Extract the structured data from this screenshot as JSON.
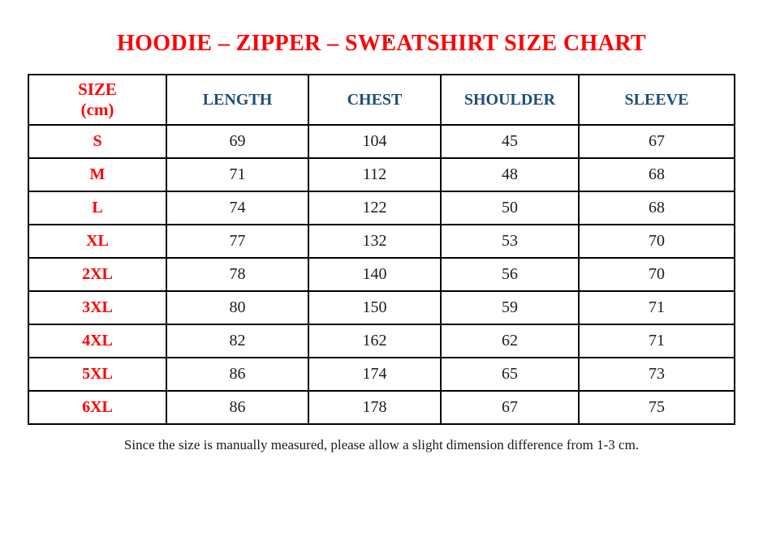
{
  "page": {
    "top_dot": ".",
    "title": "HOODIE – ZIPPER – SWEATSHIRT SIZE CHART",
    "footnote": "Since the size is manually measured, please allow a slight dimension difference from 1-3 cm."
  },
  "colors": {
    "title_red": "#ff0000",
    "size_label_red": "#ff0000",
    "header_blue": "#1f4e79",
    "value_black": "#1c1c1c",
    "border_black": "#000000",
    "background": "#ffffff"
  },
  "table": {
    "size_header_line1": "SIZE",
    "size_header_line2": "(cm)",
    "column_headers": [
      "LENGTH",
      "CHEST",
      "SHOULDER",
      "SLEEVE"
    ],
    "rows": [
      {
        "size": "S",
        "length": "69",
        "chest": "104",
        "shoulder": "45",
        "sleeve": "67"
      },
      {
        "size": "M",
        "length": "71",
        "chest": "112",
        "shoulder": "48",
        "sleeve": "68"
      },
      {
        "size": "L",
        "length": "74",
        "chest": "122",
        "shoulder": "50",
        "sleeve": "68"
      },
      {
        "size": "XL",
        "length": "77",
        "chest": "132",
        "shoulder": "53",
        "sleeve": "70"
      },
      {
        "size": "2XL",
        "length": "78",
        "chest": "140",
        "shoulder": "56",
        "sleeve": "70"
      },
      {
        "size": "3XL",
        "length": "80",
        "chest": "150",
        "shoulder": "59",
        "sleeve": "71"
      },
      {
        "size": "4XL",
        "length": "82",
        "chest": "162",
        "shoulder": "62",
        "sleeve": "71"
      },
      {
        "size": "5XL",
        "length": "86",
        "chest": "174",
        "shoulder": "65",
        "sleeve": "73"
      },
      {
        "size": "6XL",
        "length": "86",
        "chest": "178",
        "shoulder": "67",
        "sleeve": "75"
      }
    ]
  }
}
